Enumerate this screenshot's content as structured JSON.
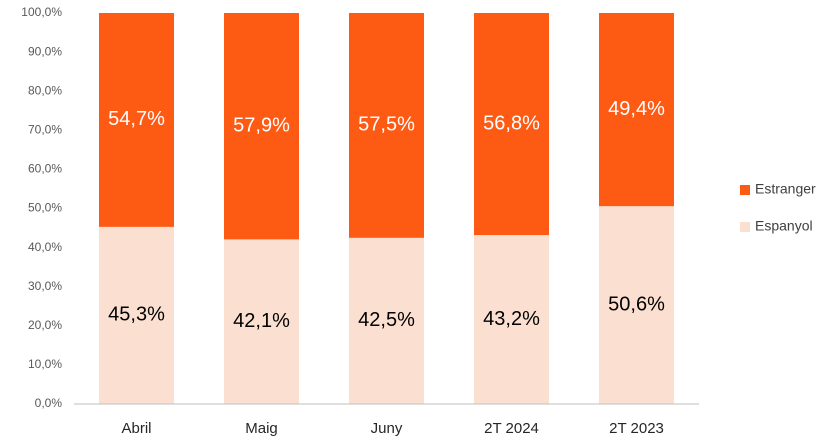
{
  "chart_data": {
    "type": "stacked_bar",
    "categories": [
      "Abril",
      "Maig",
      "Juny",
      "2T 2024",
      "2T 2023"
    ],
    "series": [
      {
        "name": "Espanyol",
        "color": "#fbe0d1",
        "label_color": "#000000",
        "values": [
          45.3,
          42.1,
          42.5,
          43.2,
          50.6
        ],
        "value_labels": [
          "45,3%",
          "42,1%",
          "42,5%",
          "43,2%",
          "50,6%"
        ]
      },
      {
        "name": "Estranger",
        "color": "#fd5a14",
        "label_color": "#ffffff",
        "values": [
          54.7,
          57.9,
          57.5,
          56.8,
          49.4
        ],
        "value_labels": [
          "54,7%",
          "57,9%",
          "57,5%",
          "56,8%",
          "49,4%"
        ]
      }
    ],
    "ylim": [
      0,
      100
    ],
    "yticks": [
      {
        "value": 0,
        "label": "0,0%"
      },
      {
        "value": 10,
        "label": "10,0%"
      },
      {
        "value": 20,
        "label": "20,0%"
      },
      {
        "value": 30,
        "label": "30,0%"
      },
      {
        "value": 40,
        "label": "40,0%"
      },
      {
        "value": 50,
        "label": "50,0%"
      },
      {
        "value": 60,
        "label": "60,0%"
      },
      {
        "value": 70,
        "label": "70,0%"
      },
      {
        "value": 80,
        "label": "80,0%"
      },
      {
        "value": 90,
        "label": "90,0%"
      },
      {
        "value": 100,
        "label": "100,0%"
      }
    ],
    "grid": false,
    "legend": "right"
  }
}
